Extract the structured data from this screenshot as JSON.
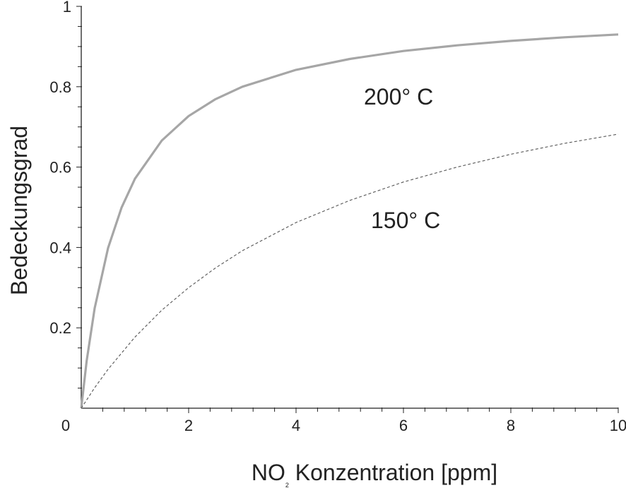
{
  "chart_data": {
    "type": "line",
    "xlabel": "NO",
    "xlabel_subscript": "2",
    "xlabel_rest": " Konzentration [ppm]",
    "ylabel": "Bedeckungsgrad",
    "xlim": [
      0,
      10
    ],
    "ylim": [
      0,
      1
    ],
    "x_ticks": [
      0,
      2,
      4,
      6,
      8,
      10
    ],
    "x_tick_labels": [
      "0",
      "2",
      "4",
      "6",
      "8",
      "10"
    ],
    "y_ticks": [
      0.2,
      0.4,
      0.6,
      0.8,
      1
    ],
    "y_tick_labels": [
      "0.2",
      "0.4",
      "0.6",
      "0.8",
      "1"
    ],
    "grid": false,
    "colors": {
      "series_200": "#a6a6a6",
      "series_150": "#555555",
      "axis": "#222222"
    },
    "series": [
      {
        "name": "200° C",
        "style": "solid",
        "x": [
          0,
          0.1,
          0.25,
          0.5,
          0.75,
          1,
          1.5,
          2,
          2.5,
          3,
          4,
          5,
          6,
          7,
          8,
          9,
          10
        ],
        "y": [
          0,
          0.117,
          0.249,
          0.399,
          0.499,
          0.571,
          0.666,
          0.727,
          0.769,
          0.8,
          0.842,
          0.869,
          0.889,
          0.903,
          0.914,
          0.923,
          0.93
        ]
      },
      {
        "name": "150° C",
        "style": "dashed",
        "x": [
          0,
          0.25,
          0.5,
          1,
          1.5,
          2,
          2.5,
          3,
          4,
          5,
          6,
          7,
          8,
          9,
          10
        ],
        "y": [
          0,
          0.051,
          0.097,
          0.177,
          0.244,
          0.3,
          0.349,
          0.392,
          0.462,
          0.517,
          0.563,
          0.6,
          0.632,
          0.659,
          0.682
        ]
      }
    ]
  }
}
